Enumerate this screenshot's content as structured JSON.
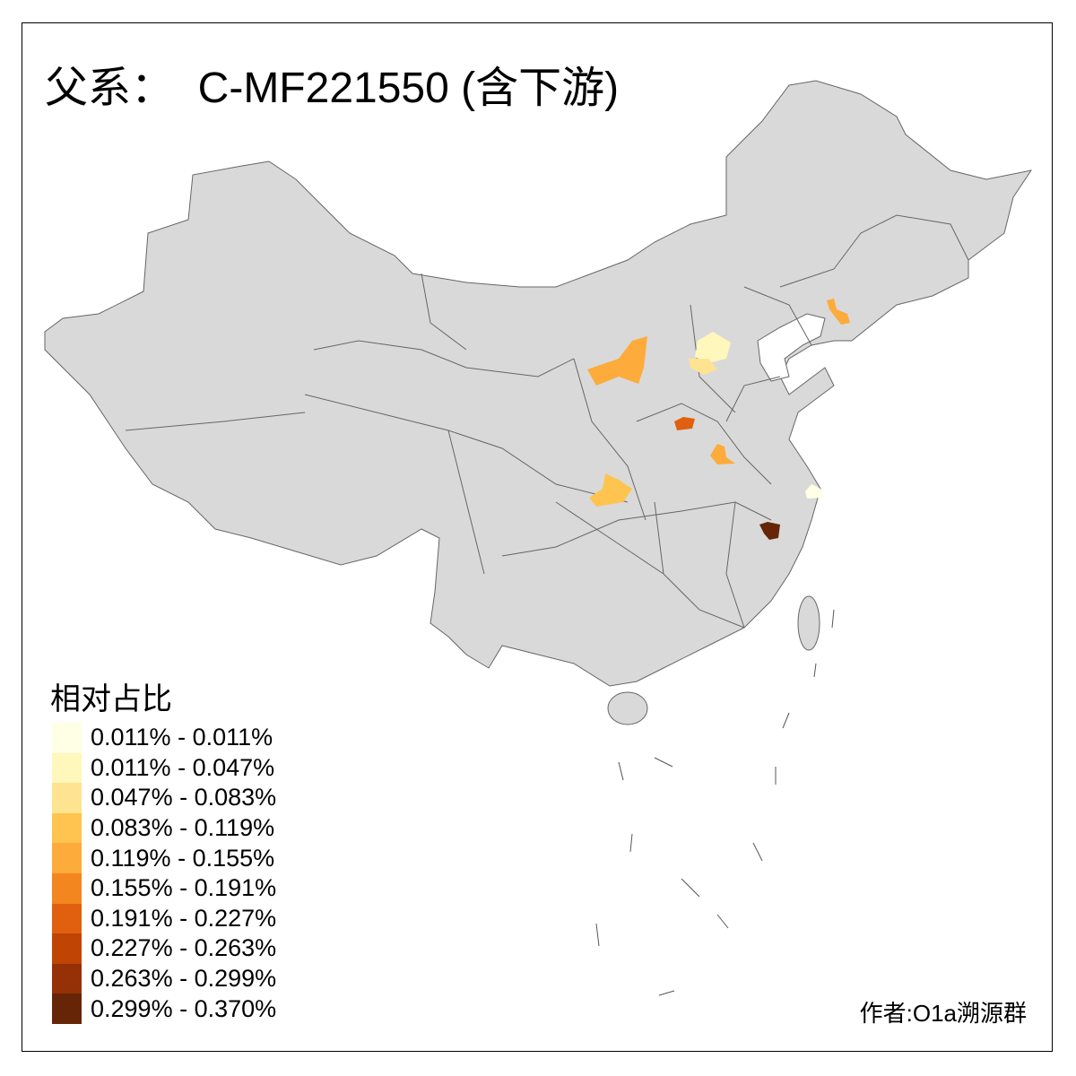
{
  "title": "父系：  C-MF221550 (含下游)",
  "legend": {
    "title": "相对占比",
    "items": [
      {
        "label": "0.011% - 0.011%",
        "color": "#FFFFE5"
      },
      {
        "label": "0.011% - 0.047%",
        "color": "#FFF7BC"
      },
      {
        "label": "0.047% - 0.083%",
        "color": "#FEE391"
      },
      {
        "label": "0.083% - 0.119%",
        "color": "#FEC44F"
      },
      {
        "label": "0.119% - 0.155%",
        "color": "#FDAB3A"
      },
      {
        "label": "0.155% - 0.191%",
        "color": "#F3861F"
      },
      {
        "label": "0.191% - 0.227%",
        "color": "#E0600F"
      },
      {
        "label": "0.227% - 0.263%",
        "color": "#C04504"
      },
      {
        "label": "0.263% - 0.299%",
        "color": "#963006"
      },
      {
        "label": "0.299% - 0.370%",
        "color": "#662506"
      }
    ]
  },
  "colors": {
    "land": "#D9D9D9",
    "border": "#666666"
  },
  "credit": "作者:O1a溯源群"
}
